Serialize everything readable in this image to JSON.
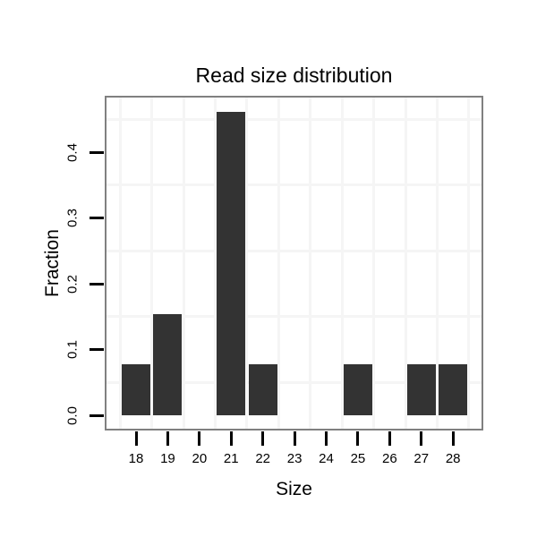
{
  "chart_data": {
    "type": "bar",
    "title": "Read size distribution",
    "xlabel": "Size",
    "ylabel": "Fraction",
    "categories": [
      18,
      19,
      20,
      21,
      22,
      23,
      24,
      25,
      26,
      27,
      28
    ],
    "values": [
      0.0769,
      0.1538,
      0,
      0.4615,
      0.0769,
      0,
      0,
      0.0769,
      0,
      0.0769,
      0.0769
    ],
    "ytick_labels": [
      "0.0",
      "0.1",
      "0.2",
      "0.3",
      "0.4"
    ],
    "ytick_values": [
      0.0,
      0.1,
      0.2,
      0.3,
      0.4
    ],
    "ylim": [
      -0.023,
      0.482
    ],
    "grid": "minor gridlines only, at half-step positions",
    "legend_position": "none",
    "colors": {
      "bar": "#333333",
      "panel_border": "#808080",
      "gridline": "#f5f5f5",
      "text": "#000000",
      "background": "#ffffff"
    }
  }
}
